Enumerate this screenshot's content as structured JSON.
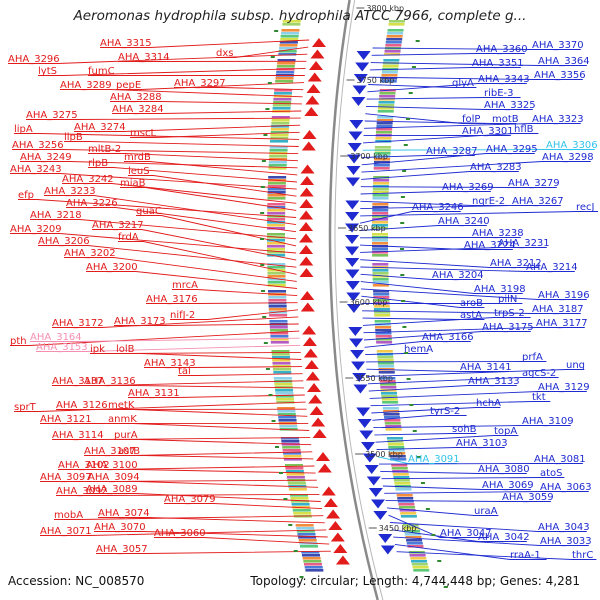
{
  "title": "Aeromonas hydrophila subsp. hydrophila ATCC 7966, complete g...",
  "footer": {
    "accession": "Accession: NC_008570",
    "topology": "Topology: circular; Length: 4,744,448 bp; Genes: 4,281"
  },
  "colors": {
    "forward": "#e21b1b",
    "reverse": "#1f2bd0",
    "rna_pink": "#f58fb2",
    "rna_cyan": "#32c4ea",
    "backbone": "#8a8a8a",
    "tick": "#2f8a2f"
  },
  "scale_ticks": [
    "3800 kbp",
    "3750 kbp",
    "3700 kbp",
    "3650 kbp",
    "3600 kbp",
    "3550 kbp",
    "3500 kbp",
    "3450 kbp"
  ],
  "left_labels": [
    {
      "text": "AHA_3315",
      "kind": "forward"
    },
    {
      "text": "dxs",
      "kind": "forward"
    },
    {
      "text": "AHA_3296",
      "kind": "forward"
    },
    {
      "text": "AHA_3314",
      "kind": "forward"
    },
    {
      "text": "lytS",
      "kind": "forward"
    },
    {
      "text": "fumC",
      "kind": "forward"
    },
    {
      "text": "pepE",
      "kind": "forward"
    },
    {
      "text": "AHA_3297",
      "kind": "forward"
    },
    {
      "text": "AHA_3289",
      "kind": "forward"
    },
    {
      "text": "AHA_3288",
      "kind": "forward"
    },
    {
      "text": "AHA_3284",
      "kind": "forward"
    },
    {
      "text": "AHA_3275",
      "kind": "forward"
    },
    {
      "text": "AHA_3274",
      "kind": "forward"
    },
    {
      "text": "mscL",
      "kind": "forward"
    },
    {
      "text": "lipA",
      "kind": "forward"
    },
    {
      "text": "lipB",
      "kind": "forward"
    },
    {
      "text": "AHA_3256",
      "kind": "forward"
    },
    {
      "text": "mltB-2",
      "kind": "forward"
    },
    {
      "text": "AHA_3249",
      "kind": "forward"
    },
    {
      "text": "mrdB",
      "kind": "forward"
    },
    {
      "text": "rlpB",
      "kind": "forward"
    },
    {
      "text": "AHA_3243",
      "kind": "forward"
    },
    {
      "text": "leuS",
      "kind": "forward"
    },
    {
      "text": "AHA_3242",
      "kind": "forward"
    },
    {
      "text": "miaB",
      "kind": "forward"
    },
    {
      "text": "efp",
      "kind": "forward"
    },
    {
      "text": "AHA_3233",
      "kind": "forward"
    },
    {
      "text": "AHA_3226",
      "kind": "forward"
    },
    {
      "text": "AHA_3218",
      "kind": "forward"
    },
    {
      "text": "guaC",
      "kind": "forward"
    },
    {
      "text": "AHA_3209",
      "kind": "forward"
    },
    {
      "text": "AHA_3217",
      "kind": "forward"
    },
    {
      "text": "AHA_3206",
      "kind": "forward"
    },
    {
      "text": "frdA",
      "kind": "forward"
    },
    {
      "text": "AHA_3202",
      "kind": "forward"
    },
    {
      "text": "AHA_3200",
      "kind": "forward"
    },
    {
      "text": "mrcA",
      "kind": "forward"
    },
    {
      "text": "AHA_3176",
      "kind": "forward"
    },
    {
      "text": "nifJ-2",
      "kind": "forward"
    },
    {
      "text": "AHA_3172",
      "kind": "forward"
    },
    {
      "text": "AHA_3173",
      "kind": "forward"
    },
    {
      "text": "pth",
      "kind": "forward"
    },
    {
      "text": "AHA_3164",
      "kind": "rna"
    },
    {
      "text": "AHA_3153",
      "kind": "rna"
    },
    {
      "text": "ipk",
      "kind": "forward"
    },
    {
      "text": "lolB",
      "kind": "forward"
    },
    {
      "text": "AHA_3143",
      "kind": "forward"
    },
    {
      "text": "tal",
      "kind": "forward"
    },
    {
      "text": "AHA_3137",
      "kind": "forward"
    },
    {
      "text": "AHA_3136",
      "kind": "forward"
    },
    {
      "text": "AHA_3131",
      "kind": "forward"
    },
    {
      "text": "sprT",
      "kind": "forward"
    },
    {
      "text": "AHA_3126",
      "kind": "forward"
    },
    {
      "text": "metK",
      "kind": "forward"
    },
    {
      "text": "AHA_3121",
      "kind": "forward"
    },
    {
      "text": "anmK",
      "kind": "forward"
    },
    {
      "text": "AHA_3114",
      "kind": "forward"
    },
    {
      "text": "purA",
      "kind": "forward"
    },
    {
      "text": "AHA_3107",
      "kind": "forward"
    },
    {
      "text": "astB",
      "kind": "forward"
    },
    {
      "text": "AHA_3102",
      "kind": "forward"
    },
    {
      "text": "AHA_3100",
      "kind": "forward"
    },
    {
      "text": "AHA_3097",
      "kind": "forward"
    },
    {
      "text": "AHA_3094",
      "kind": "forward"
    },
    {
      "text": "AHA_3092",
      "kind": "forward"
    },
    {
      "text": "AHA_3089",
      "kind": "forward"
    },
    {
      "text": "AHA_3079",
      "kind": "forward"
    },
    {
      "text": "mobA",
      "kind": "forward"
    },
    {
      "text": "AHA_3074",
      "kind": "forward"
    },
    {
      "text": "AHA_3071",
      "kind": "forward"
    },
    {
      "text": "AHA_3070",
      "kind": "forward"
    },
    {
      "text": "AHA_3060",
      "kind": "forward"
    },
    {
      "text": "AHA_3057",
      "kind": "forward"
    }
  ],
  "right_labels": [
    {
      "text": "AHA_3370",
      "kind": "reverse"
    },
    {
      "text": "AHA_3360",
      "kind": "reverse"
    },
    {
      "text": "AHA_3364",
      "kind": "reverse"
    },
    {
      "text": "AHA_3351",
      "kind": "reverse"
    },
    {
      "text": "AHA_3356",
      "kind": "reverse"
    },
    {
      "text": "glyA",
      "kind": "reverse"
    },
    {
      "text": "AHA_3343",
      "kind": "reverse"
    },
    {
      "text": "ribE-3",
      "kind": "reverse"
    },
    {
      "text": "AHA_3325",
      "kind": "reverse"
    },
    {
      "text": "folP",
      "kind": "reverse"
    },
    {
      "text": "motB",
      "kind": "reverse"
    },
    {
      "text": "AHA_3323",
      "kind": "reverse"
    },
    {
      "text": "AHA_3301",
      "kind": "reverse"
    },
    {
      "text": "hflB",
      "kind": "reverse"
    },
    {
      "text": "AHA_3306",
      "kind": "rna"
    },
    {
      "text": "AHA_3287",
      "kind": "reverse"
    },
    {
      "text": "AHA_3295",
      "kind": "reverse"
    },
    {
      "text": "AHA_3298",
      "kind": "reverse"
    },
    {
      "text": "AHA_3283",
      "kind": "reverse"
    },
    {
      "text": "AHA_3279",
      "kind": "reverse"
    },
    {
      "text": "AHA_3269",
      "kind": "reverse"
    },
    {
      "text": "nqrE-2",
      "kind": "reverse"
    },
    {
      "text": "AHA_3267",
      "kind": "reverse"
    },
    {
      "text": "recJ",
      "kind": "reverse"
    },
    {
      "text": "AHA_3246",
      "kind": "reverse"
    },
    {
      "text": "AHA_3240",
      "kind": "reverse"
    },
    {
      "text": "AHA_3238",
      "kind": "reverse"
    },
    {
      "text": "AHA_3224",
      "kind": "reverse"
    },
    {
      "text": "AHA_3231",
      "kind": "reverse"
    },
    {
      "text": "AHA_3212",
      "kind": "reverse"
    },
    {
      "text": "AHA_3214",
      "kind": "reverse"
    },
    {
      "text": "AHA_3204",
      "kind": "reverse"
    },
    {
      "text": "AHA_3198",
      "kind": "reverse"
    },
    {
      "text": "AHA_3196",
      "kind": "reverse"
    },
    {
      "text": "aroB",
      "kind": "reverse"
    },
    {
      "text": "pilN",
      "kind": "reverse"
    },
    {
      "text": "AHA_3187",
      "kind": "reverse"
    },
    {
      "text": "astA",
      "kind": "reverse"
    },
    {
      "text": "trpS-2",
      "kind": "reverse"
    },
    {
      "text": "AHA_3177",
      "kind": "reverse"
    },
    {
      "text": "AHA_3175",
      "kind": "reverse"
    },
    {
      "text": "AHA_3166",
      "kind": "reverse"
    },
    {
      "text": "hemA",
      "kind": "reverse"
    },
    {
      "text": "prfA",
      "kind": "reverse"
    },
    {
      "text": "AHA_3141",
      "kind": "reverse"
    },
    {
      "text": "ung",
      "kind": "reverse"
    },
    {
      "text": "agcS-2",
      "kind": "reverse"
    },
    {
      "text": "AHA_3133",
      "kind": "reverse"
    },
    {
      "text": "AHA_3129",
      "kind": "reverse"
    },
    {
      "text": "tkt",
      "kind": "reverse"
    },
    {
      "text": "hchA",
      "kind": "reverse"
    },
    {
      "text": "tyrS-2",
      "kind": "reverse"
    },
    {
      "text": "AHA_3109",
      "kind": "reverse"
    },
    {
      "text": "sohB",
      "kind": "reverse"
    },
    {
      "text": "topA",
      "kind": "reverse"
    },
    {
      "text": "AHA_3103",
      "kind": "reverse"
    },
    {
      "text": "AHA_3091",
      "kind": "rna"
    },
    {
      "text": "AHA_3081",
      "kind": "reverse"
    },
    {
      "text": "AHA_3080",
      "kind": "reverse"
    },
    {
      "text": "atoS",
      "kind": "reverse"
    },
    {
      "text": "AHA_3069",
      "kind": "reverse"
    },
    {
      "text": "AHA_3063",
      "kind": "reverse"
    },
    {
      "text": "AHA_3059",
      "kind": "reverse"
    },
    {
      "text": "uraA",
      "kind": "reverse"
    },
    {
      "text": "AHA_3047",
      "kind": "reverse"
    },
    {
      "text": "AHA_3043",
      "kind": "reverse"
    },
    {
      "text": "AHA_3042",
      "kind": "reverse"
    },
    {
      "text": "AHA_3033",
      "kind": "reverse"
    },
    {
      "text": "rraA-1",
      "kind": "reverse"
    },
    {
      "text": "thrC",
      "kind": "reverse"
    }
  ]
}
